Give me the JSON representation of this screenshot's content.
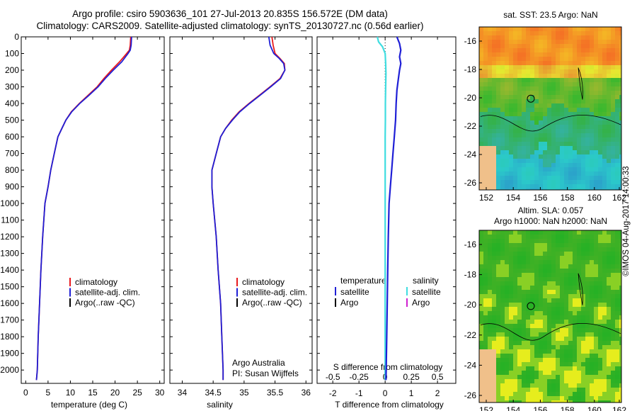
{
  "header": {
    "line1": "Argo profile: csiro 5903636_101 27-Jul-2013 20.835S 156.572E (DM data)",
    "line2": "Climatology: CARS2009. Satellite-adjusted climatology: synTS_20130727.nc (0.56d earlier)"
  },
  "colors": {
    "climatology": "#e8191d",
    "satellite": "#1f1fd6",
    "argo": "#000000",
    "sal_sat": "#3fdde0",
    "sal_argo": "#d020d0"
  },
  "chart_data": [
    {
      "type": "line",
      "name": "temperature",
      "xlabel": "temperature (deg C)",
      "ylabel": "",
      "xlim": [
        -1,
        31
      ],
      "ylim": [
        0,
        2080
      ],
      "x_ticks": [
        0,
        5,
        10,
        15,
        20,
        25,
        30
      ],
      "y_ticks": [
        0,
        100,
        200,
        300,
        400,
        500,
        600,
        700,
        800,
        900,
        1000,
        1100,
        1200,
        1300,
        1400,
        1500,
        1600,
        1700,
        1800,
        1900,
        2000
      ],
      "legend": [
        "climatology",
        "satellite-adj. clim.",
        "Argo(..raw -QC)"
      ],
      "series": [
        {
          "name": "climatology",
          "x": [
            23.5,
            23.4,
            23.2,
            22.6,
            21.0,
            19.2,
            17.5,
            16.0,
            14.0,
            12.0,
            10.2,
            9.0,
            8.1,
            7.2,
            6.4,
            5.6,
            5.0,
            4.3,
            3.8,
            3.4,
            3.1,
            2.8,
            2.6,
            2.4
          ],
          "y": [
            0,
            50,
            80,
            100,
            150,
            200,
            250,
            300,
            350,
            400,
            450,
            500,
            550,
            600,
            700,
            800,
            900,
            1000,
            1200,
            1400,
            1600,
            1800,
            2000,
            2060
          ]
        },
        {
          "name": "satellite-adj. clim.",
          "x": [
            23.7,
            23.6,
            23.4,
            22.9,
            21.5,
            19.6,
            17.8,
            16.2,
            14.2,
            12.1,
            10.3,
            9.0,
            8.1,
            7.2,
            6.4,
            5.6,
            5.0,
            4.3,
            3.8,
            3.4,
            3.1,
            2.8,
            2.6,
            2.4
          ],
          "y": [
            0,
            50,
            80,
            100,
            150,
            200,
            250,
            300,
            350,
            400,
            450,
            500,
            550,
            600,
            700,
            800,
            900,
            1000,
            1200,
            1400,
            1600,
            1800,
            2000,
            2060
          ]
        }
      ]
    },
    {
      "type": "line",
      "name": "salinity",
      "xlabel": "salinity",
      "xlim": [
        33.8,
        36.1
      ],
      "ylim": [
        0,
        2080
      ],
      "x_ticks": [
        34,
        34.5,
        35,
        35.5,
        36
      ],
      "legend": [
        "climatology",
        "satellite-adj. clim.",
        "Argo(..raw -QC)"
      ],
      "annotation": [
        "Argo Australia",
        "PI: Susan Wijffels"
      ],
      "series": [
        {
          "name": "climatology",
          "x": [
            35.45,
            35.47,
            35.5,
            35.58,
            35.65,
            35.66,
            35.58,
            35.42,
            35.25,
            35.08,
            34.92,
            34.8,
            34.7,
            34.62,
            34.55,
            34.48,
            34.48,
            34.5,
            34.55,
            34.58,
            34.62,
            34.64,
            34.66,
            34.66
          ],
          "y": [
            0,
            50,
            100,
            130,
            160,
            200,
            250,
            300,
            350,
            400,
            450,
            500,
            550,
            600,
            700,
            800,
            900,
            1000,
            1200,
            1400,
            1600,
            1800,
            2000,
            2060
          ]
        },
        {
          "name": "satellite-adj. clim.",
          "x": [
            35.4,
            35.42,
            35.48,
            35.57,
            35.64,
            35.66,
            35.59,
            35.43,
            35.26,
            35.09,
            34.93,
            34.81,
            34.7,
            34.62,
            34.55,
            34.48,
            34.48,
            34.5,
            34.55,
            34.58,
            34.62,
            34.64,
            34.66,
            34.66
          ],
          "y": [
            0,
            50,
            100,
            130,
            160,
            200,
            250,
            300,
            350,
            400,
            450,
            500,
            550,
            600,
            700,
            800,
            900,
            1000,
            1200,
            1400,
            1600,
            1800,
            2000,
            2060
          ]
        }
      ]
    },
    {
      "type": "line",
      "name": "difference",
      "xlabel": "T difference from climatology",
      "xlabel_top": "S difference from climatology",
      "xlim": [
        -2.6,
        2.7
      ],
      "ylim": [
        0,
        2080
      ],
      "x_ticks": [
        -2,
        -1,
        0,
        1,
        2
      ],
      "x_ticks_s": [
        "-0.5",
        "-0.25",
        "0",
        "0.25",
        "0.5"
      ],
      "legend_temperature": [
        "temperature",
        "satellite",
        "Argo"
      ],
      "legend_salinity": [
        "salinity",
        "satellite",
        "Argo"
      ],
      "series": [
        {
          "name": "T satellite",
          "x": [
            0.45,
            0.5,
            0.55,
            0.6,
            0.55,
            0.6,
            0.55,
            0.5,
            0.45,
            0.42,
            0.4,
            0.35,
            0.3,
            0.25,
            0.2,
            0.15,
            0.12,
            0.1,
            0.08,
            0.06,
            0.05,
            0.04,
            0.03
          ],
          "y": [
            0,
            20,
            40,
            80,
            120,
            160,
            200,
            260,
            320,
            400,
            500,
            600,
            700,
            800,
            900,
            1000,
            1200,
            1400,
            1600,
            1800,
            1900,
            2000,
            2060
          ]
        },
        {
          "name": "S satellite",
          "x": [
            -0.3,
            -0.25,
            -0.1,
            0.0,
            0.02,
            0.03,
            0.02,
            0.01,
            0.01,
            0.0,
            0.0,
            0.0,
            0.0,
            0.0,
            0.0,
            0.0,
            0.0
          ],
          "y": [
            0,
            30,
            60,
            100,
            160,
            220,
            300,
            400,
            500,
            600,
            800,
            1000,
            1200,
            1400,
            1600,
            1800,
            2060
          ]
        }
      ]
    },
    {
      "type": "heatmap",
      "name": "sst_map",
      "title": "sat. SST: 23.5 Argo: NaN",
      "x_ticks": [
        "152",
        "154",
        "156",
        "158",
        "160",
        "162"
      ],
      "y_ticks": [
        "-16",
        "-18",
        "-20",
        "-22",
        "-24",
        "-26"
      ]
    },
    {
      "type": "heatmap",
      "name": "sla_map",
      "title_line1": "Altim. SLA: 0.057",
      "title_line2": "Argo h1000: NaN h2000: NaN",
      "x_ticks": [
        "152",
        "154",
        "156",
        "158",
        "160",
        "162"
      ],
      "y_ticks": [
        "-16",
        "-18",
        "-20",
        "-22",
        "-24",
        "-26"
      ]
    }
  ],
  "footer": {
    "vertical_label": "©IMOS 04-Aug-2017 14:00:33"
  }
}
